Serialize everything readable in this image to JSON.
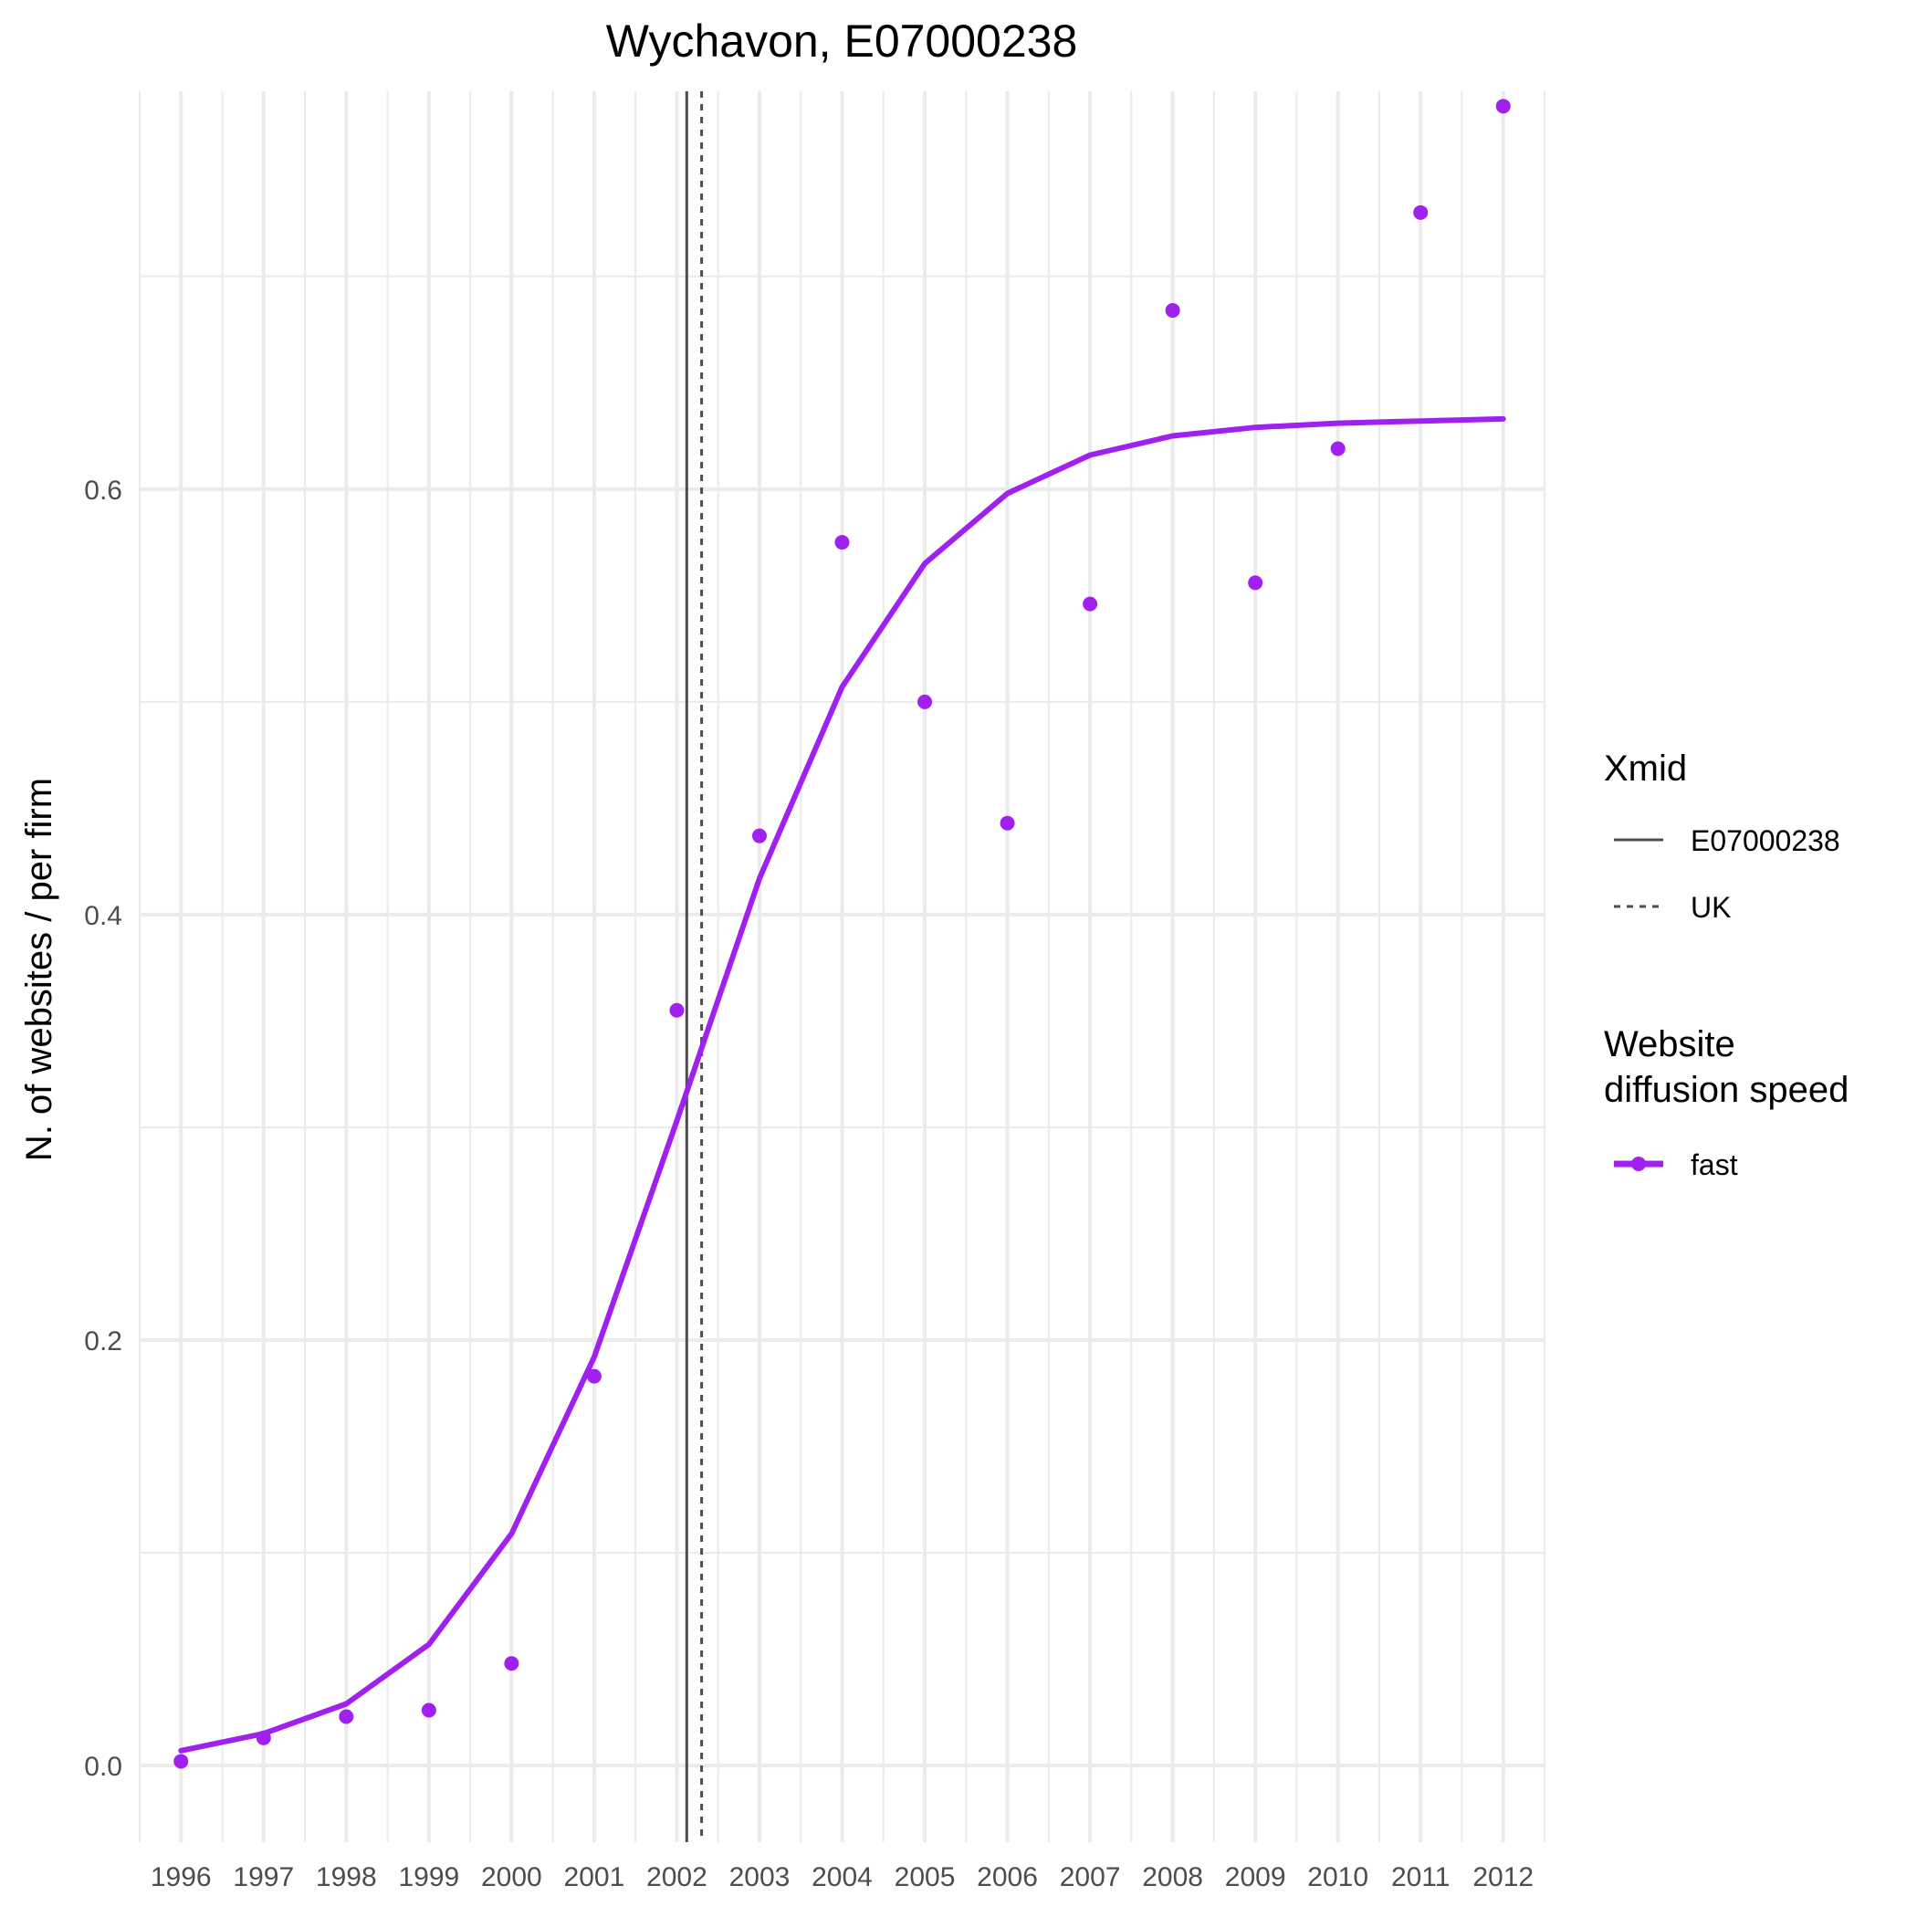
{
  "chart_data": {
    "type": "line",
    "title": "Wychavon, E07000238",
    "xlabel": "",
    "ylabel": "N. of websites / per firm",
    "x": [
      1996,
      1997,
      1998,
      1999,
      2000,
      2001,
      2002,
      2003,
      2004,
      2005,
      2006,
      2007,
      2008,
      2009,
      2010,
      2011,
      2012
    ],
    "x_tick_labels": [
      "1996",
      "1997",
      "1998",
      "1999",
      "2000",
      "2001",
      "2002",
      "2003",
      "2004",
      "2005",
      "2006",
      "2007",
      "2008",
      "2009",
      "2010",
      "2011",
      "2012"
    ],
    "y_ticks": [
      0.0,
      0.2,
      0.4,
      0.6
    ],
    "y_tick_labels": [
      "0.0",
      "0.2",
      "0.4",
      "0.6"
    ],
    "xlim": [
      1995.5,
      2012.5
    ],
    "ylim": [
      -0.036,
      0.787
    ],
    "grid": true,
    "series": [
      {
        "name": "fast",
        "color": "#A020F0",
        "points": [
          0.002,
          0.013,
          0.023,
          0.026,
          0.048,
          0.183,
          0.355,
          0.437,
          0.575,
          0.5,
          0.443,
          0.546,
          0.684,
          0.556,
          0.619,
          0.73,
          0.78
        ],
        "fitted": [
          0.007,
          0.015,
          0.029,
          0.057,
          0.109,
          0.192,
          0.303,
          0.417,
          0.507,
          0.565,
          0.598,
          0.616,
          0.625,
          0.629,
          0.631,
          0.632,
          0.633
        ]
      }
    ],
    "vlines": [
      {
        "name": "E07000238",
        "x": 2002.12,
        "style": "solid",
        "color": "#4d4d4d"
      },
      {
        "name": "UK",
        "x": 2002.3,
        "style": "dashed",
        "color": "#4d4d4d"
      }
    ],
    "legend": {
      "placement": "right",
      "groups": [
        {
          "title": "Xmid",
          "entries": [
            "E07000238",
            "UK"
          ]
        },
        {
          "title_lines": [
            "Website",
            "diffusion speed"
          ],
          "entries": [
            "fast"
          ]
        }
      ]
    }
  }
}
